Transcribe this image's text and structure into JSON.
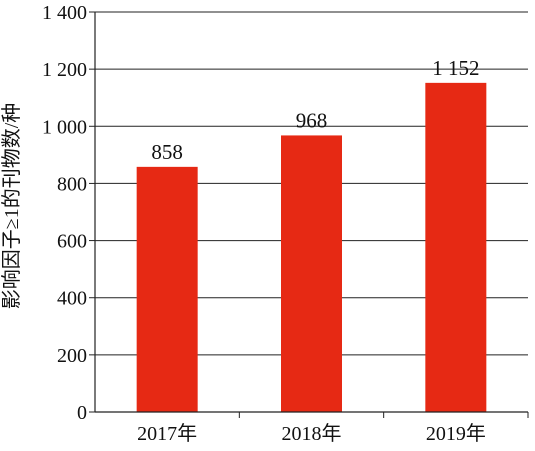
{
  "chart_data": {
    "type": "bar",
    "title": "",
    "xlabel": "",
    "ylabel": "影响因子≥1的刊物数/种",
    "categories": [
      "2017年",
      "2018年",
      "2019年"
    ],
    "values": [
      858,
      968,
      1152
    ],
    "data_labels": [
      "858",
      "968",
      "1 152"
    ],
    "ylim": [
      0,
      1400
    ],
    "yticks": [
      0,
      200,
      400,
      600,
      800,
      1000,
      1200,
      1400
    ],
    "ytick_labels": [
      "0",
      "200",
      "400",
      "600",
      "800",
      "1 000",
      "1 200",
      "1 400"
    ],
    "grid": "horizontal",
    "legend": "none",
    "bar_color": "#e62914"
  }
}
